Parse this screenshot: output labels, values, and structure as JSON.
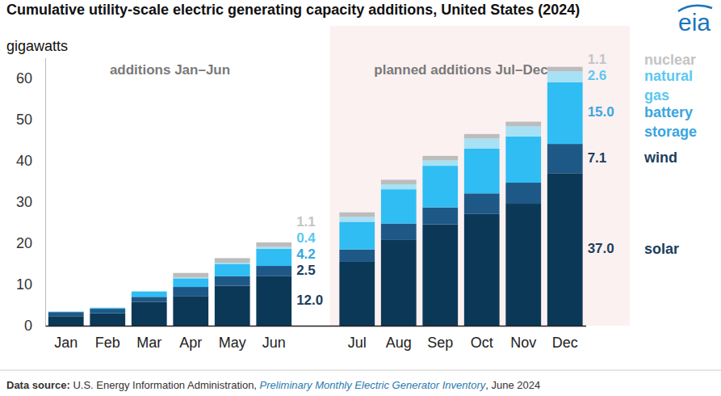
{
  "chart_data": {
    "type": "bar",
    "stacked": true,
    "title": "Cumulative utility-scale electric generating capacity additions, United States (2024)",
    "subtitle": "gigawatts",
    "logo": "eia",
    "categories": [
      "Jan",
      "Feb",
      "Mar",
      "Apr",
      "May",
      "Jun",
      "Jul",
      "Aug",
      "Sep",
      "Oct",
      "Nov",
      "Dec"
    ],
    "regions": [
      {
        "label": "additions Jan–Jun",
        "from": "Jan",
        "to": "Jun"
      },
      {
        "label": "planned additions Jul–Dec",
        "from": "Jul",
        "to": "Dec"
      }
    ],
    "series": [
      {
        "name": "solar",
        "color": "#0c3857",
        "values": [
          2.3,
          3.0,
          5.8,
          7.2,
          9.7,
          12.0,
          15.5,
          20.8,
          24.6,
          27.1,
          29.6,
          37.0
        ],
        "value_labels": [
          null,
          null,
          null,
          null,
          null,
          "12.0",
          null,
          null,
          null,
          null,
          null,
          "37.0"
        ]
      },
      {
        "name": "wind",
        "color": "#1e5886",
        "values": [
          1.0,
          1.1,
          1.2,
          2.2,
          2.3,
          2.5,
          3.0,
          4.0,
          4.1,
          5.0,
          5.1,
          7.1
        ],
        "value_labels": [
          null,
          null,
          null,
          null,
          null,
          "2.5",
          null,
          null,
          null,
          null,
          null,
          "7.1"
        ]
      },
      {
        "name": "battery storage",
        "color": "#2fbdf4",
        "values": [
          0.1,
          0.2,
          1.3,
          2.1,
          3.0,
          4.2,
          6.7,
          8.3,
          10.1,
          10.9,
          11.2,
          15.0
        ],
        "value_labels": [
          null,
          null,
          null,
          null,
          null,
          "4.2",
          null,
          null,
          null,
          null,
          null,
          "15.0"
        ]
      },
      {
        "name": "natural gas",
        "color": "#a7e1f6",
        "values": [
          0.1,
          0.1,
          0.1,
          0.2,
          0.3,
          0.4,
          1.2,
          1.2,
          1.3,
          2.4,
          2.5,
          2.6
        ],
        "value_labels": [
          null,
          null,
          null,
          null,
          null,
          "0.4",
          null,
          null,
          null,
          null,
          null,
          "2.6"
        ]
      },
      {
        "name": "nuclear",
        "color": "#bcbcbc",
        "values": [
          0,
          0,
          0,
          1.1,
          1.1,
          1.1,
          1.1,
          1.1,
          1.1,
          1.1,
          1.1,
          1.1
        ],
        "value_labels": [
          null,
          null,
          null,
          null,
          null,
          "1.1",
          null,
          null,
          null,
          null,
          null,
          "1.1"
        ]
      }
    ],
    "ylim": [
      0,
      65
    ],
    "yticks": [
      0,
      10,
      20,
      30,
      40,
      50,
      60
    ],
    "grid": false,
    "legend": "right",
    "data_labels": true,
    "source": {
      "prefix": "Data source:",
      "agency": "U.S. Energy Information Administration,",
      "publication": "Preliminary Monthly Electric Generator Inventory",
      "suffix": ", June 2024"
    }
  }
}
